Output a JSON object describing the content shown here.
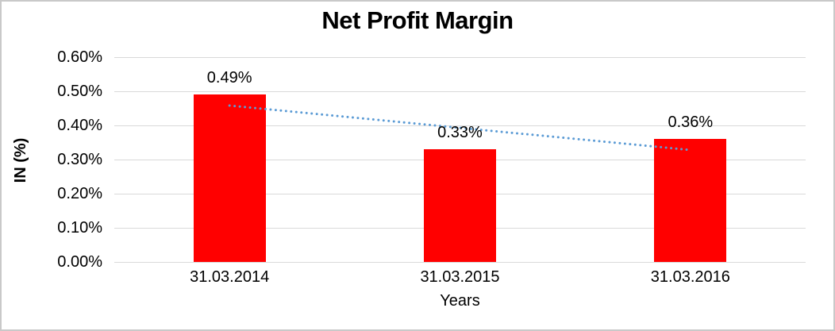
{
  "chart_data": {
    "type": "bar",
    "title": "Net Profit Margin",
    "xlabel": "Years",
    "ylabel": "IN (%)",
    "categories": [
      "31.03.2014",
      "31.03.2015",
      "31.03.2016"
    ],
    "values": [
      0.49,
      0.33,
      0.36
    ],
    "data_labels": [
      "0.49%",
      "0.33%",
      "0.36%"
    ],
    "ylim": [
      0,
      0.6
    ],
    "ytick_step": 0.1,
    "ytick_labels": [
      "0.00%",
      "0.10%",
      "0.20%",
      "0.30%",
      "0.40%",
      "0.50%",
      "0.60%"
    ],
    "grid": true,
    "legend_position": "none",
    "bar_color": "#ff0000",
    "gridline_color": "#d9d9d9",
    "trendline": {
      "type": "linear",
      "style": "dotted",
      "color": "#5b9bd5",
      "start_value": 0.458,
      "end_value": 0.328
    }
  }
}
